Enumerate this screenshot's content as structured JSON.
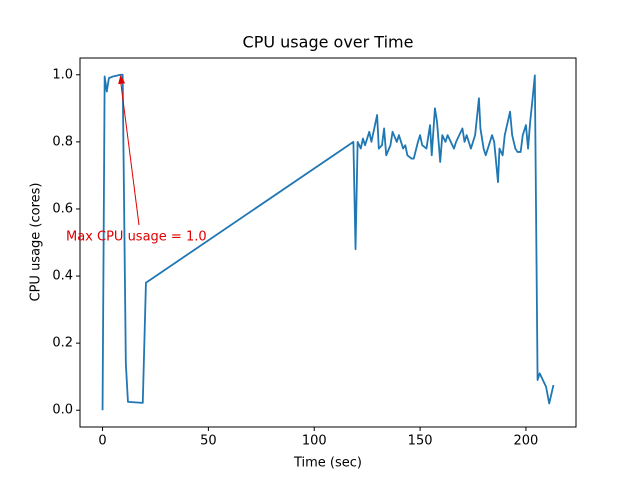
{
  "chart_data": {
    "type": "line",
    "title": "CPU usage over Time",
    "xlabel": "Time (sec)",
    "ylabel": "CPU usage (cores)",
    "annotation": "Max CPU usage = 1.0",
    "color": "#1f77b4",
    "annotation_color": "#e00000",
    "x": [
      0,
      1,
      2,
      3,
      5,
      8.5,
      9.5,
      11,
      12,
      19,
      20.5,
      118.5,
      119.5,
      120.5,
      122,
      123,
      124,
      126,
      127,
      129.7,
      130.5,
      132,
      133,
      134,
      136,
      137,
      139,
      140,
      142,
      143,
      144,
      146,
      147,
      149,
      150,
      151,
      153,
      154.7,
      155.5,
      157,
      158,
      159.5,
      160.5,
      162,
      163,
      164.5,
      166,
      167,
      168.5,
      170,
      171,
      172,
      174,
      175,
      176,
      177.8,
      178.5,
      180,
      181,
      182,
      184,
      185,
      186.8,
      187.5,
      189,
      190,
      192.5,
      193.5,
      195,
      196,
      197.5,
      198.5,
      200,
      201,
      202,
      203,
      204.2,
      205.5,
      206.5,
      208,
      209.5,
      211,
      213
    ],
    "values": [
      0,
      0.995,
      0.95,
      0.99,
      0.995,
      1.0,
      1.0,
      0.14,
      0.025,
      0.022,
      0.38,
      0.8,
      0.48,
      0.8,
      0.78,
      0.81,
      0.79,
      0.83,
      0.8,
      0.88,
      0.78,
      0.79,
      0.84,
      0.76,
      0.79,
      0.83,
      0.8,
      0.82,
      0.78,
      0.79,
      0.76,
      0.75,
      0.75,
      0.8,
      0.82,
      0.79,
      0.78,
      0.85,
      0.76,
      0.9,
      0.86,
      0.74,
      0.82,
      0.8,
      0.82,
      0.8,
      0.78,
      0.8,
      0.82,
      0.84,
      0.8,
      0.82,
      0.78,
      0.8,
      0.82,
      0.93,
      0.84,
      0.78,
      0.76,
      0.78,
      0.82,
      0.8,
      0.68,
      0.78,
      0.76,
      0.82,
      0.89,
      0.82,
      0.78,
      0.77,
      0.77,
      0.82,
      0.85,
      0.78,
      0.86,
      0.92,
      0.998,
      0.09,
      0.11,
      0.09,
      0.07,
      0.02,
      0.075
    ],
    "xlim": [
      -10.65,
      223.65
    ],
    "ylim": [
      -0.05,
      1.05
    ],
    "xticks": [
      0,
      50,
      100,
      150,
      200
    ],
    "yticks": [
      {
        "value": 0,
        "label": "0.0"
      },
      0.2,
      0.4,
      0.6,
      0.8,
      {
        "value": 1,
        "label": "1.0"
      }
    ]
  }
}
